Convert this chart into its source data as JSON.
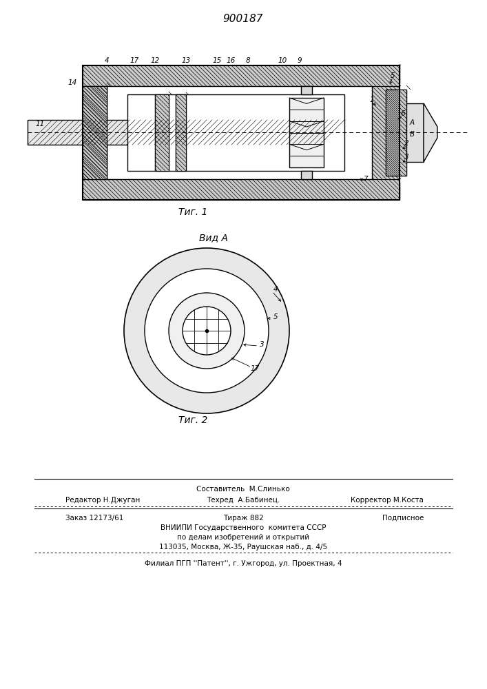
{
  "patent_number": "900187",
  "bg_color": "#ffffff",
  "fig1_caption": "Τиг. 1",
  "fig2_caption": "Τиг. 2",
  "view_label": "Вид A",
  "footer_lines": [
    [
      "left",
      65,
      "Редактор Н.Джуган"
    ],
    [
      "center",
      353,
      "Составитель М.Слинько"
    ],
    [
      "center",
      353,
      "Техред  А.Бабинец."
    ],
    [
      "right",
      642,
      "Корректор М.Коста"
    ]
  ],
  "footer2_lines": [
    "Заказ 12173/61       Тираж 882            Подписное",
    "ВНИИПИ Государствённого  комитета СССР",
    "по делам изобретений и открытий",
    "113035, Москва, Ж-35, Раушская наб., д. 4/5"
  ],
  "footer3": "Филиал ППП ''Patent'', г. Ужгород, ул. Проектная, 4"
}
